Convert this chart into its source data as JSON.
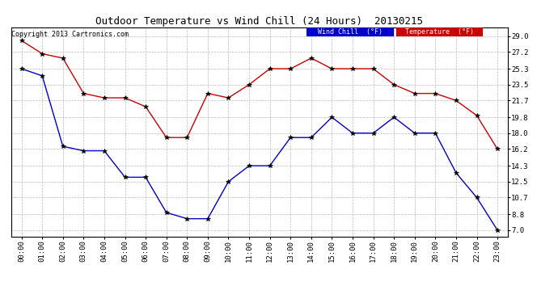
{
  "title": "Outdoor Temperature vs Wind Chill (24 Hours)  20130215",
  "copyright": "Copyright 2013 Cartronics.com",
  "x_labels": [
    "00:00",
    "01:00",
    "02:00",
    "03:00",
    "04:00",
    "05:00",
    "06:00",
    "07:00",
    "08:00",
    "09:00",
    "10:00",
    "11:00",
    "12:00",
    "13:00",
    "14:00",
    "15:00",
    "16:00",
    "17:00",
    "18:00",
    "19:00",
    "20:00",
    "21:00",
    "22:00",
    "23:00"
  ],
  "temperature": [
    28.5,
    27.0,
    26.5,
    22.5,
    22.0,
    22.0,
    21.0,
    17.5,
    17.5,
    22.5,
    22.0,
    23.5,
    25.3,
    25.3,
    26.5,
    25.3,
    25.3,
    25.3,
    23.5,
    22.5,
    22.5,
    21.7,
    20.0,
    16.2
  ],
  "wind_chill": [
    25.3,
    24.5,
    16.5,
    16.0,
    16.0,
    13.0,
    13.0,
    9.0,
    8.3,
    8.3,
    12.5,
    14.3,
    14.3,
    17.5,
    17.5,
    19.8,
    18.0,
    18.0,
    19.8,
    18.0,
    18.0,
    13.5,
    10.7,
    7.0
  ],
  "temp_color": "#cc0000",
  "wind_chill_color": "#0000cc",
  "bg_color": "#ffffff",
  "grid_color": "#bbbbbb",
  "y_ticks": [
    7.0,
    8.8,
    10.7,
    12.5,
    14.3,
    16.2,
    18.0,
    19.8,
    21.7,
    23.5,
    25.3,
    27.2,
    29.0
  ],
  "ylim": [
    6.3,
    30.0
  ],
  "legend_wind_bg": "#0000cc",
  "legend_temp_bg": "#cc0000",
  "marker": "*",
  "marker_size": 4,
  "title_fontsize": 9,
  "tick_fontsize": 6.5,
  "copyright_fontsize": 6
}
